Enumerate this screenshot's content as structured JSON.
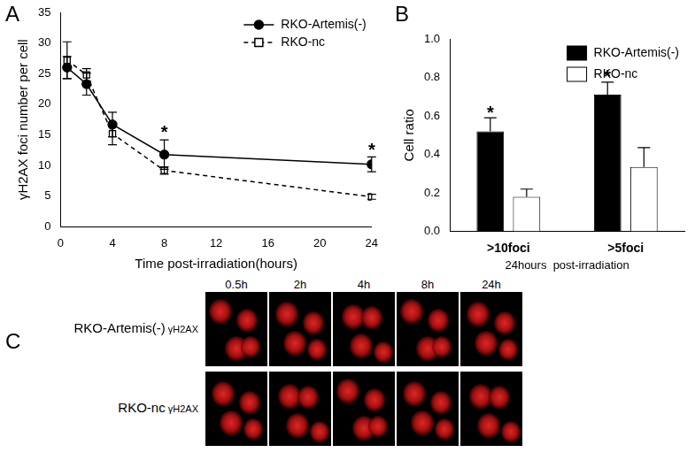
{
  "chart_data": [
    {
      "panel_label": "A",
      "type": "line",
      "x_label": "Time post-irradiation(hours)",
      "y_label": "γH2AX foci number per cell",
      "x": [
        0.5,
        2,
        4,
        8,
        24
      ],
      "xlim": [
        0,
        24
      ],
      "xticks": [
        0,
        4,
        8,
        12,
        16,
        20,
        24
      ],
      "ylim": [
        0,
        35
      ],
      "yticks": [
        0,
        5,
        10,
        15,
        20,
        25,
        30,
        35
      ],
      "grid": false,
      "legend": "upper right",
      "series": [
        {
          "name": "RKO-Artemis(-)",
          "color": "#000000",
          "marker": "circle",
          "line_style": "solid",
          "values": [
            26,
            23.3,
            16.7,
            11.8,
            10.2
          ],
          "errors": [
            1.8,
            1.8,
            2,
            2.4,
            1.2
          ]
        },
        {
          "name": "RKO-nc",
          "color": "#000000",
          "marker": "square_open",
          "line_style": "dashed",
          "values": [
            27.2,
            24.8,
            15.2,
            9.2,
            4.9
          ],
          "errors": [
            3,
            1,
            1.8,
            0.6,
            0.4
          ]
        }
      ],
      "annotations": [
        {
          "text": "*",
          "x": 8,
          "y": 15.8
        },
        {
          "text": "*",
          "x": 24,
          "y": 13
        }
      ]
    },
    {
      "panel_label": "B",
      "type": "bar",
      "categories": [
        ">10foci",
        ">5foci"
      ],
      "x_label": "24hours  post-irradiation",
      "y_label": "Cell ratio",
      "ylim": [
        0,
        1
      ],
      "yticks": [
        {
          "value": 0,
          "label": "0.0"
        },
        0.2,
        0.4,
        0.6,
        0.8,
        {
          "value": 1,
          "label": "1.0"
        }
      ],
      "grid": false,
      "legend": "upper right",
      "series": [
        {
          "name": "RKO-Artemis(-)",
          "color": "#000000",
          "values": [
            0.52,
            0.71
          ],
          "errors": [
            0.07,
            0.065
          ]
        },
        {
          "name": "RKO-nc",
          "color": "#ffffff",
          "values": [
            0.18,
            0.335
          ],
          "errors": [
            0.04,
            0.1
          ]
        }
      ],
      "annotations": [
        {
          "text": "*",
          "category": ">10foci",
          "series": "RKO-Artemis(-)",
          "y": 0.63
        },
        {
          "text": "*",
          "category": ">5foci",
          "series": "RKO-Artemis(-)",
          "y": 0.82
        }
      ]
    }
  ],
  "image_panel": {
    "panel_label": "C",
    "columns": [
      "0.5h",
      "2h",
      "4h",
      "8h",
      "24h"
    ],
    "rows": [
      {
        "name": "RKO-Artemis(-)",
        "stain": "γH2AX"
      },
      {
        "name": "RKO-nc",
        "stain": "γH2AX"
      }
    ]
  }
}
